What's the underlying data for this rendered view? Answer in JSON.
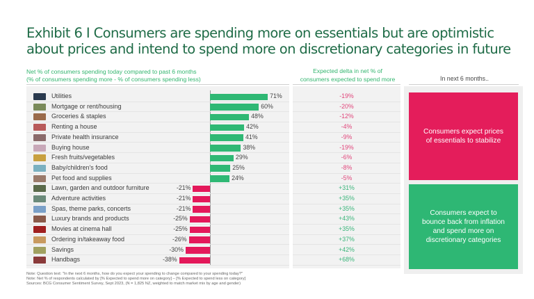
{
  "title": "Exhibit 6 I Consumers are spending more on essentials but are optimistic about prices and intend to spend more on discretionary categories in future",
  "headers": {
    "left_line1": "Net % of consumers spending today compared to past 6 months",
    "left_line2": "(% of consumers spending more - % of consumers spending less)",
    "mid_line1": "Expected delta in net % of",
    "mid_line2": "consumers expected to spend more",
    "right": "In next 6 months.."
  },
  "colors": {
    "positive": "#2fb874",
    "negative": "#e4185a",
    "title": "#1e6b46",
    "delta_negative": "#e0457a",
    "delta_positive": "#3ab47a"
  },
  "chart_data": {
    "type": "bar",
    "orientation": "horizontal",
    "title": "Net % of consumers spending today compared to past 6 months",
    "subtitle": "(% of consumers spending more - % of consumers spending less)",
    "categories": [
      "Utilities",
      "Mortgage or rent/housing",
      "Groceries & staples",
      "Renting a house",
      "Private health insurance",
      "Buying house",
      "Fresh fruits/vegetables",
      "Baby/children's food",
      "Pet food and supplies",
      "Lawn, garden and outdoor furniture",
      "Adventure activities",
      "Spas, theme parks, concerts",
      "Luxury brands and products",
      "Movies at cinema hall",
      "Ordering in/takeaway food",
      "Savings",
      "Handbags"
    ],
    "icons": [
      "utilities-icon",
      "mortgage-icon",
      "groceries-icon",
      "renting-icon",
      "health-insurance-icon",
      "buying-house-icon",
      "fruits-vegetables-icon",
      "baby-food-icon",
      "pet-food-icon",
      "lawn-garden-icon",
      "adventure-icon",
      "spas-theme-parks-icon",
      "luxury-brands-icon",
      "movies-icon",
      "takeaway-food-icon",
      "savings-icon",
      "handbags-icon"
    ],
    "icon_colors": [
      "#2a3a4e",
      "#7a8a5a",
      "#9a6a4a",
      "#b85a5a",
      "#8a6a6a",
      "#c8a8b8",
      "#c8a040",
      "#7ab0c0",
      "#9a7a6a",
      "#5a6a4a",
      "#6a8a7a",
      "#7aa0c8",
      "#8a5a4a",
      "#a02020",
      "#c89a60",
      "#a0a060",
      "#8a3a3a"
    ],
    "series": [
      {
        "name": "Net % of consumers spending today compared to past 6 months",
        "values": [
          71,
          60,
          48,
          42,
          41,
          38,
          29,
          25,
          24,
          -21,
          -21,
          -21,
          -25,
          -25,
          -26,
          -30,
          -38
        ],
        "labels": [
          "71%",
          "60%",
          "48%",
          "42%",
          "41%",
          "38%",
          "29%",
          "25%",
          "24%",
          "-21%",
          "-21%",
          "-21%",
          "-25%",
          "-25%",
          "-26%",
          "-30%",
          "-38%"
        ]
      },
      {
        "name": "Expected delta in net % of consumers expected to spend more",
        "values": [
          -19,
          -20,
          -12,
          -4,
          -9,
          -19,
          -6,
          -8,
          -5,
          31,
          35,
          35,
          43,
          35,
          37,
          42,
          68
        ],
        "labels": [
          "-19%",
          "-20%",
          "-12%",
          "-4%",
          "-9%",
          "-19%",
          "-6%",
          "-8%",
          "-5%",
          "+31%",
          "+35%",
          "+35%",
          "+43%",
          "+35%",
          "+37%",
          "+42%",
          "+68%"
        ]
      }
    ],
    "xlabel": "",
    "ylabel": "",
    "xlim": [
      -38,
      71
    ],
    "grid": false,
    "legend": "none"
  },
  "summary_boxes": [
    {
      "text": "Consumers expect prices of essentials to stabilize",
      "color": "#e41d5b"
    },
    {
      "text": "Consumers expect to bounce back from inflation and spend more on discretionary categories",
      "color": "#2eb774"
    }
  ],
  "notes": [
    "Note: Question text: \"In the next 6 months, how do you expect your spending to change compared to your spending today?\"",
    "Note: Net % of respondents calculated by [% Expected to spend more on category] – [% Expected to spend less on category]",
    "Sources: BCG Consumer Sentiment Survey, Sept 2023, (N = 1,825 NZ, weighted to match market mix by age and gender)"
  ]
}
